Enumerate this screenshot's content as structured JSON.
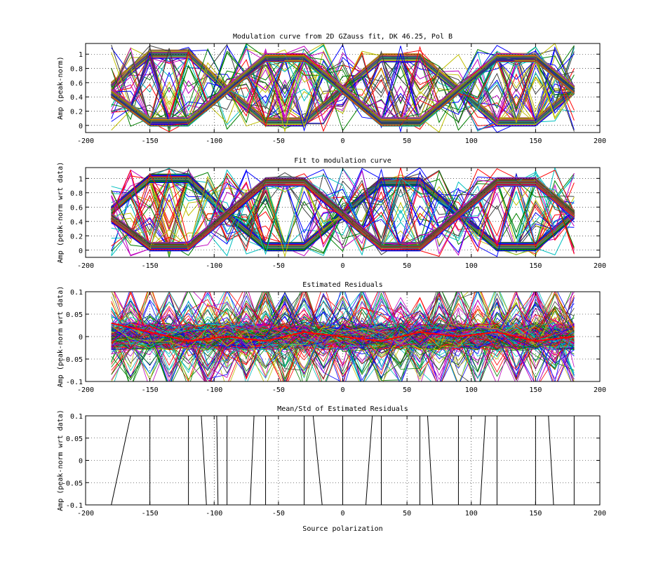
{
  "chart_data": [
    {
      "type": "line",
      "title": "Modulation curve from 2D GZauss fit, DK 46.25, Pol B",
      "xlabel": "",
      "ylabel": "Amp (peak-norm)",
      "xlim": [
        -200,
        200
      ],
      "ylim": [
        -0.1,
        1.15
      ],
      "xticks": [
        -200,
        -150,
        -100,
        -50,
        0,
        50,
        100,
        150,
        200
      ],
      "yticks": [
        0,
        0.2,
        0.4,
        0.6,
        0.8,
        1
      ],
      "ytick_labels": [
        "0",
        "0.2",
        "0.4",
        "0.6",
        "0.8",
        "1"
      ],
      "grid": true,
      "x": [
        -180,
        -150,
        -120,
        -90,
        -60,
        -30,
        0,
        30,
        60,
        90,
        120,
        150,
        180
      ],
      "series": [
        {
          "values": [
            0.55,
            1.0,
            1.0,
            0.5,
            0.05,
            0.05,
            0.5,
            0.95,
            0.95,
            0.5,
            0.05,
            0.05,
            0.5
          ]
        },
        {
          "values": [
            0.45,
            0.05,
            0.05,
            0.5,
            0.95,
            0.95,
            0.5,
            0.05,
            0.05,
            0.5,
            0.95,
            0.95,
            0.5
          ]
        }
      ],
      "note_series": "envelope of many overlapping traces"
    },
    {
      "type": "line",
      "title": "Fit to modulation curve",
      "xlabel": "",
      "ylabel": "Amp (peak-norm wrt data)",
      "xlim": [
        -200,
        200
      ],
      "ylim": [
        -0.1,
        1.15
      ],
      "xticks": [
        -200,
        -150,
        -100,
        -50,
        0,
        50,
        100,
        150,
        200
      ],
      "yticks": [
        0,
        0.2,
        0.4,
        0.6,
        0.8,
        1
      ],
      "ytick_labels": [
        "0",
        "0.2",
        "0.4",
        "0.6",
        "0.8",
        "1"
      ],
      "grid": true,
      "x": [
        -180,
        -150,
        -120,
        -90,
        -60,
        -30,
        0,
        30,
        60,
        90,
        120,
        150,
        180
      ],
      "series": [
        {
          "values": [
            0.55,
            1.0,
            1.0,
            0.5,
            0.05,
            0.05,
            0.5,
            0.95,
            0.95,
            0.5,
            0.05,
            0.05,
            0.5
          ]
        },
        {
          "values": [
            0.45,
            0.05,
            0.05,
            0.5,
            0.95,
            0.95,
            0.5,
            0.05,
            0.05,
            0.5,
            0.95,
            0.95,
            0.5
          ]
        }
      ]
    },
    {
      "type": "line",
      "title": "Estimated Residuals",
      "xlabel": "",
      "ylabel": "Amp (peak-norm wrt data)",
      "xlim": [
        -200,
        200
      ],
      "ylim": [
        -0.1,
        0.1
      ],
      "xticks": [
        -200,
        -150,
        -100,
        -50,
        0,
        50,
        100,
        150,
        200
      ],
      "yticks": [
        -0.1,
        -0.05,
        0,
        0.05,
        0.1
      ],
      "ytick_labels": [
        "-0.1",
        "-0.05",
        "0",
        "0.05",
        "0.1"
      ],
      "grid": true,
      "x": [
        -180,
        -150,
        -120,
        -90,
        -60,
        -30,
        0,
        30,
        60,
        90,
        120,
        150,
        180
      ],
      "series": [
        {
          "values": [
            0.03,
            0.01,
            -0.01,
            0.0,
            -0.01,
            0.01,
            0.0,
            -0.01,
            0.01,
            0.0,
            0.01,
            -0.01,
            0.0
          ]
        }
      ]
    },
    {
      "type": "line",
      "title": "Mean/Std of Estimated Residuals",
      "xlabel": "Source polarization",
      "ylabel": "Amp (peak-norm wrt data)",
      "xlim": [
        -200,
        200
      ],
      "ylim": [
        -0.1,
        0.1
      ],
      "xticks": [
        -200,
        -150,
        -100,
        -50,
        0,
        50,
        100,
        150,
        200
      ],
      "yticks": [
        -0.1,
        -0.05,
        0,
        0.05,
        0.1
      ],
      "ytick_labels": [
        "-0.1",
        "-0.05",
        "0",
        "0.05",
        "0.1"
      ],
      "grid": true,
      "segments": [
        [
          [
            -180,
            -0.1
          ],
          [
            -165,
            0.1
          ]
        ],
        [
          [
            -150,
            -0.1
          ],
          [
            -150,
            0.1
          ]
        ],
        [
          [
            -120,
            -0.1
          ],
          [
            -120,
            0.1
          ]
        ],
        [
          [
            -110,
            0.1
          ],
          [
            -106,
            -0.1
          ]
        ],
        [
          [
            -98,
            0.1
          ],
          [
            -97,
            -0.1
          ]
        ],
        [
          [
            -90,
            -0.1
          ],
          [
            -90,
            0.1
          ]
        ],
        [
          [
            -72,
            -0.1
          ],
          [
            -69,
            0.1
          ]
        ],
        [
          [
            -60,
            -0.1
          ],
          [
            -60,
            0.1
          ]
        ],
        [
          [
            -30,
            -0.1
          ],
          [
            -30,
            0.1
          ]
        ],
        [
          [
            -23,
            0.1
          ],
          [
            -16,
            -0.1
          ]
        ],
        [
          [
            0,
            -0.1
          ],
          [
            0,
            0.1
          ]
        ],
        [
          [
            18,
            -0.1
          ],
          [
            23,
            0.1
          ]
        ],
        [
          [
            30,
            -0.1
          ],
          [
            30,
            0.1
          ]
        ],
        [
          [
            60,
            -0.1
          ],
          [
            60,
            0.1
          ]
        ],
        [
          [
            66,
            0.1
          ],
          [
            70,
            -0.1
          ]
        ],
        [
          [
            90,
            -0.1
          ],
          [
            90,
            0.1
          ]
        ],
        [
          [
            107,
            -0.1
          ],
          [
            111,
            0.1
          ]
        ],
        [
          [
            120,
            -0.1
          ],
          [
            120,
            0.1
          ]
        ],
        [
          [
            150,
            -0.1
          ],
          [
            150,
            0.1
          ]
        ],
        [
          [
            160,
            0.1
          ],
          [
            164,
            -0.1
          ]
        ],
        [
          [
            180,
            -0.1
          ],
          [
            180,
            0.1
          ]
        ]
      ]
    }
  ],
  "colors": [
    "#0000ff",
    "#008000",
    "#ff0000",
    "#00bfbf",
    "#bf00bf",
    "#bfbf00",
    "#404040"
  ]
}
